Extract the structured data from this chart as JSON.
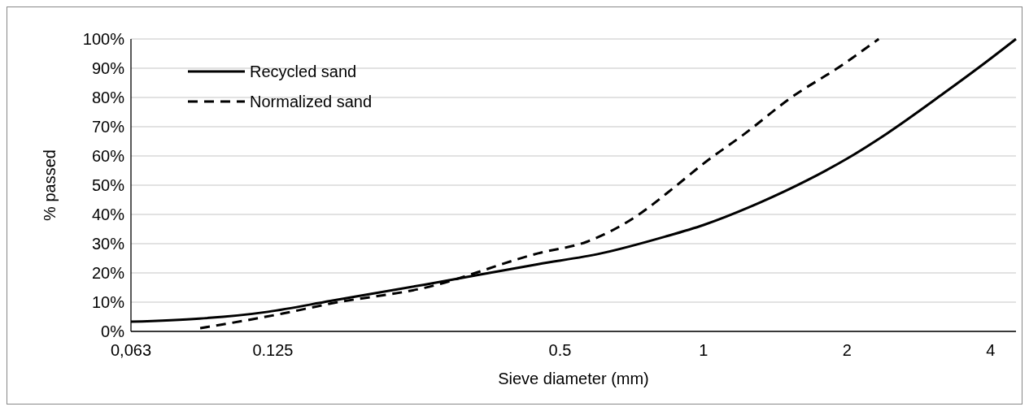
{
  "chart_data": {
    "type": "line",
    "xlabel": "Sieve diameter (mm)",
    "ylabel": "% passed",
    "log": "x",
    "grid": "y",
    "legend": "top left",
    "xlim": [
      0.063,
      4.52
    ],
    "xticks": [
      {
        "value": 0.063,
        "label": "0,063"
      },
      0.125,
      0.5,
      1,
      2,
      4
    ],
    "ylim": [
      0,
      100
    ],
    "yticks": [
      {
        "value": 0,
        "label": "0%"
      },
      {
        "value": 10,
        "label": "10%"
      },
      {
        "value": 20,
        "label": "20%"
      },
      {
        "value": 30,
        "label": "30%"
      },
      {
        "value": 40,
        "label": "40%"
      },
      {
        "value": 50,
        "label": "50%"
      },
      {
        "value": 60,
        "label": "60%"
      },
      {
        "value": 70,
        "label": "70%"
      },
      {
        "value": 80,
        "label": "80%"
      },
      {
        "value": 90,
        "label": "90%"
      },
      {
        "value": 100,
        "label": "100%"
      }
    ],
    "series": [
      {
        "name": "Recycled sand",
        "color": "#000000",
        "line_style": "solid",
        "x": [
          0.063,
          0.122,
          0.165,
          0.26,
          0.45,
          0.61,
          0.83,
          1,
          1.31,
          1.65,
          2,
          2.42,
          3.18,
          3.94,
          4.52
        ],
        "values": [
          3.3,
          6.7,
          10.4,
          16,
          23,
          26.7,
          32.4,
          36.4,
          44.0,
          51.7,
          59.1,
          67.6,
          81.3,
          92.5,
          100
        ]
      },
      {
        "name": "Normalized sand",
        "color": "#000000",
        "line_style": "dashed",
        "x": [
          0.088,
          0.131,
          0.165,
          0.26,
          0.45,
          0.57,
          0.72,
          0.87,
          1,
          1.22,
          1.53,
          1.92,
          2.33
        ],
        "values": [
          1.1,
          6.1,
          9.5,
          14.9,
          26.7,
          30.7,
          39.2,
          49.4,
          57.4,
          67.6,
          80.1,
          90.3,
          100
        ]
      }
    ]
  }
}
